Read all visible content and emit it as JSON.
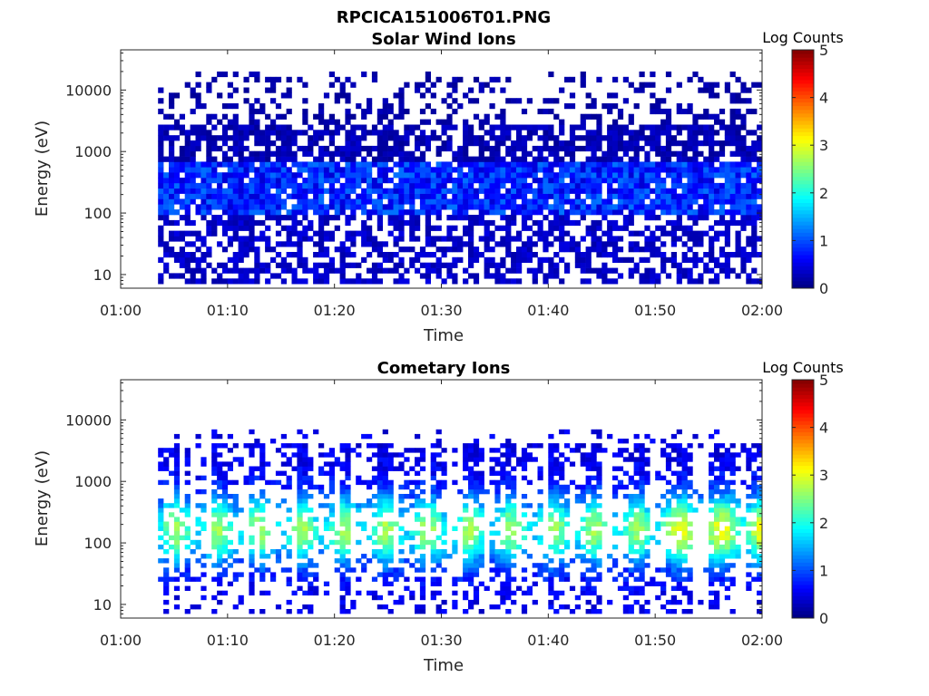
{
  "figure": {
    "title": "RPCICA151006T01.PNG"
  },
  "chart_data": [
    {
      "type": "heatmap",
      "title": "Solar Wind Ions",
      "xlabel": "Time",
      "ylabel": "Energy (eV)",
      "x_ticks": [
        "01:00",
        "01:10",
        "01:20",
        "01:30",
        "01:40",
        "01:50",
        "02:00"
      ],
      "x_range_minutes": [
        0,
        60
      ],
      "y_ticks": [
        "10",
        "100",
        "1000",
        "10000"
      ],
      "y_tick_values": [
        10,
        100,
        1000,
        10000
      ],
      "y_scale": "log",
      "ylim": [
        6,
        45000
      ],
      "colorbar": {
        "label": "Log Counts",
        "ticks": [
          "0",
          "1",
          "2",
          "3",
          "4",
          "5"
        ],
        "range": [
          0,
          5
        ],
        "colormap": "jet"
      },
      "data_start_minute": 3,
      "data_end_minute": 60,
      "energy_extent_eV": [
        10,
        20000
      ],
      "typical_log_counts": {
        "below_100eV": 0.3,
        "100_to_600eV": 0.8,
        "above_1000eV": 0.2
      },
      "max_log_counts": 1.3
    },
    {
      "type": "heatmap",
      "title": "Cometary Ions",
      "xlabel": "Time",
      "ylabel": "Energy (eV)",
      "x_ticks": [
        "01:00",
        "01:10",
        "01:20",
        "01:30",
        "01:40",
        "01:50",
        "02:00"
      ],
      "x_range_minutes": [
        0,
        60
      ],
      "y_ticks": [
        "10",
        "100",
        "1000",
        "10000"
      ],
      "y_tick_values": [
        10,
        100,
        1000,
        10000
      ],
      "y_scale": "log",
      "ylim": [
        6,
        45000
      ],
      "colorbar": {
        "label": "Log Counts",
        "ticks": [
          "0",
          "1",
          "2",
          "3",
          "4",
          "5"
        ],
        "range": [
          0,
          5
        ],
        "colormap": "jet"
      },
      "data_start_minute": 3,
      "data_end_minute": 60,
      "energy_extent_eV": [
        10,
        7000
      ],
      "peak_energy_eV": 150,
      "typical_log_counts": {
        "core": 1.8,
        "wings": 0.6
      },
      "max_log_counts": 2.7
    }
  ]
}
